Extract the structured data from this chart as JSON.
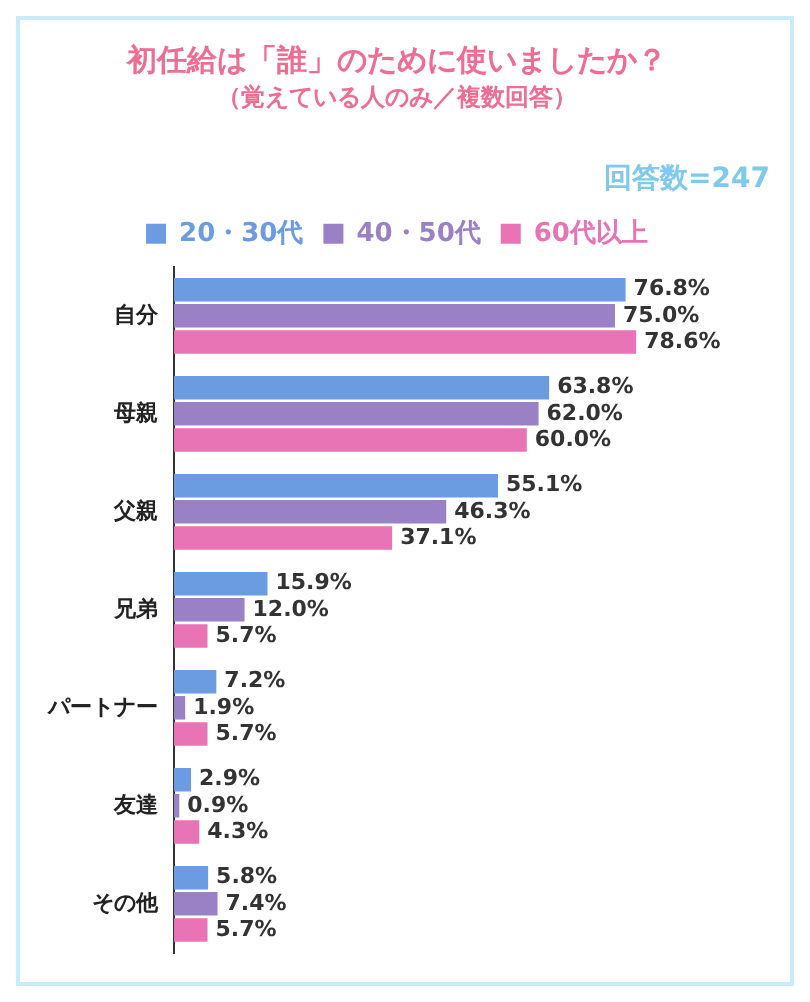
{
  "chart_data": {
    "type": "bar",
    "orientation": "horizontal",
    "title": "初任給は「誰」のために使いましたか？",
    "subtitle": "（覚えている人のみ／複数回答）",
    "annotations": [
      "回答数=247"
    ],
    "categories": [
      "自分",
      "母親",
      "父親",
      "兄弟",
      "パートナー",
      "友達",
      "その他"
    ],
    "legend": "top",
    "tick_labels": "y",
    "grid": false,
    "series": [
      {
        "name": "20・30代",
        "color": "#6b9be0",
        "values": [
          76.8,
          63.8,
          55.1,
          15.9,
          7.2,
          2.9,
          5.8
        ],
        "value_labels": [
          "76.8%",
          "63.8%",
          "55.1%",
          "15.9%",
          "7.2%",
          "2.9%",
          "5.8%"
        ]
      },
      {
        "name": "40・50代",
        "color": "#9a80c4",
        "values": [
          75.0,
          62.0,
          46.3,
          12.0,
          1.9,
          0.9,
          7.4
        ],
        "value_labels": [
          "75.0%",
          "62.0%",
          "46.3%",
          "12.0%",
          "1.9%",
          "0.9%",
          "7.4%"
        ]
      },
      {
        "name": "60代以上",
        "color": "#e873b5",
        "values": [
          78.6,
          60.0,
          37.1,
          5.7,
          5.7,
          4.3,
          5.7
        ],
        "value_labels": [
          "78.6%",
          "60.0%",
          "37.1%",
          "5.7%",
          "5.7%",
          "4.3%",
          "5.7%"
        ]
      }
    ]
  }
}
